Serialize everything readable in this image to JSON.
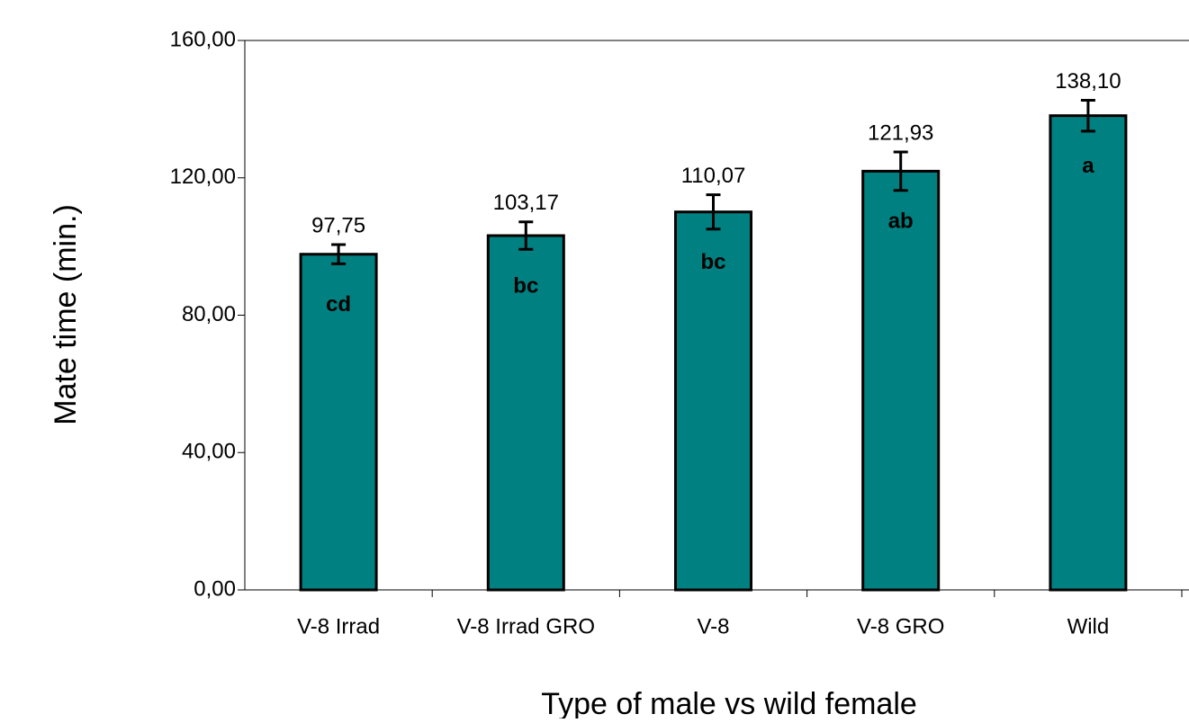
{
  "chart_data": {
    "type": "bar",
    "xlabel": "Type of male vs wild female",
    "ylabel": "Mate time (min.)",
    "categories": [
      "V-8 Irrad",
      "V-8 Irrad GRO",
      "V-8",
      "V-8 GRO",
      "Wild"
    ],
    "values": [
      97.75,
      103.17,
      110.07,
      121.93,
      138.1
    ],
    "value_labels": [
      "97,75",
      "103,17",
      "110,07",
      "121,93",
      "138,10"
    ],
    "errors": [
      2.8,
      4,
      5,
      5.6,
      4.5
    ],
    "letters": [
      "cd",
      "bc",
      "bc",
      "ab",
      "a"
    ],
    "color": "#008080",
    "ylim": [
      0,
      160
    ],
    "yticks": [
      {
        "value": 0,
        "label": "0,00"
      },
      {
        "value": 40,
        "label": "40,00"
      },
      {
        "value": 80,
        "label": "80,00"
      },
      {
        "value": 120,
        "label": "120,00"
      },
      {
        "value": 160,
        "label": "160,00"
      }
    ],
    "grid": false
  }
}
